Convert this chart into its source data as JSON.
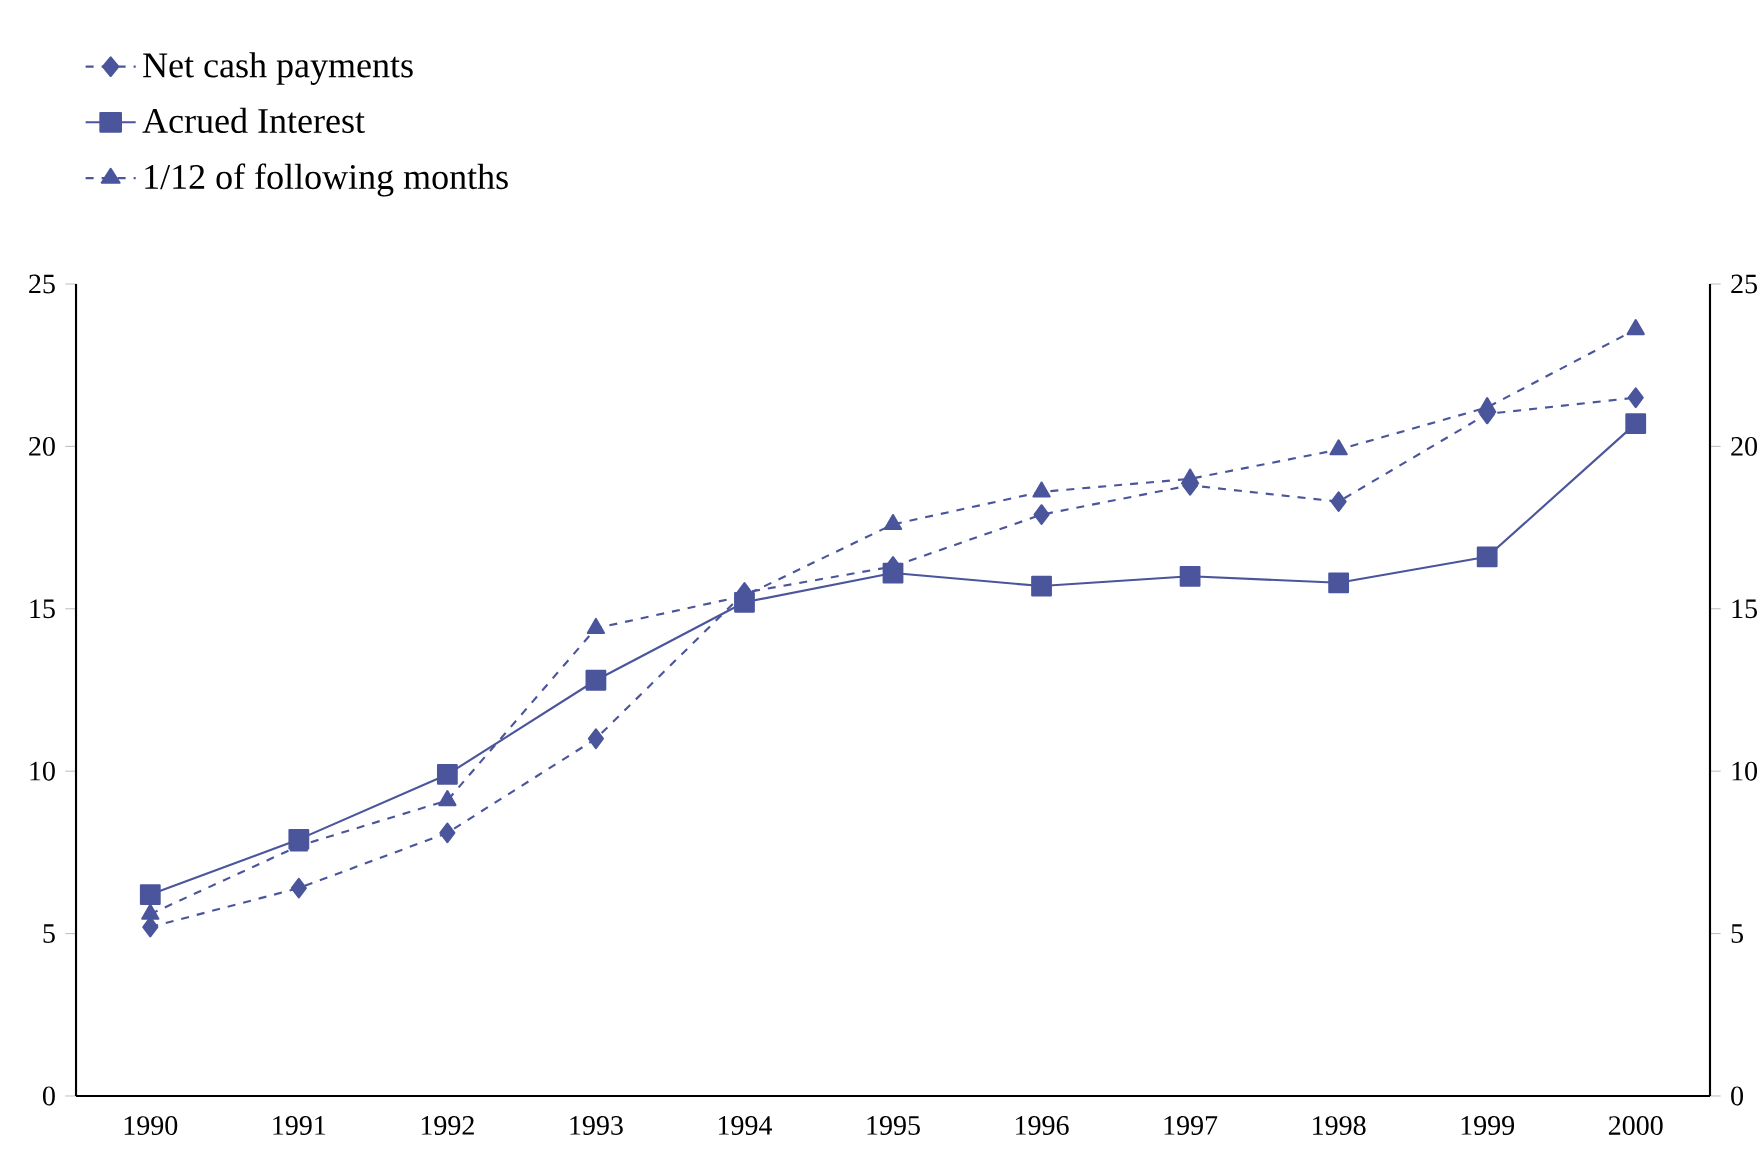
{
  "chart_data": {
    "type": "line",
    "categories": [
      "1990",
      "1991",
      "1992",
      "1993",
      "1994",
      "1995",
      "1996",
      "1997",
      "1998",
      "1999",
      "2000"
    ],
    "series": [
      {
        "name": "Net cash payments",
        "color": "#4a559c",
        "marker": "diamond",
        "line_style": "dashed",
        "values": [
          5.2,
          6.4,
          8.1,
          11.0,
          15.5,
          16.3,
          17.9,
          18.8,
          18.3,
          21.0,
          21.5
        ]
      },
      {
        "name": "Acrued Interest",
        "color": "#4a559c",
        "marker": "square",
        "line_style": "solid",
        "values": [
          6.2,
          7.9,
          9.9,
          12.8,
          15.2,
          16.1,
          15.7,
          16.0,
          15.8,
          16.6,
          20.7
        ]
      },
      {
        "name": "1/12 of following months",
        "color": "#4a559c",
        "marker": "triangle",
        "line_style": "dashed",
        "values": [
          5.6,
          7.7,
          9.1,
          14.4,
          15.4,
          17.6,
          18.6,
          19.0,
          19.9,
          21.2,
          23.6
        ]
      }
    ],
    "ylim": [
      0,
      25
    ],
    "yticks": [
      0,
      5,
      10,
      15,
      20,
      25
    ],
    "y2lim": [
      0,
      25
    ],
    "y2ticks": [
      0,
      5,
      10,
      15,
      20,
      25
    ],
    "grid": false,
    "legend": "top left"
  }
}
